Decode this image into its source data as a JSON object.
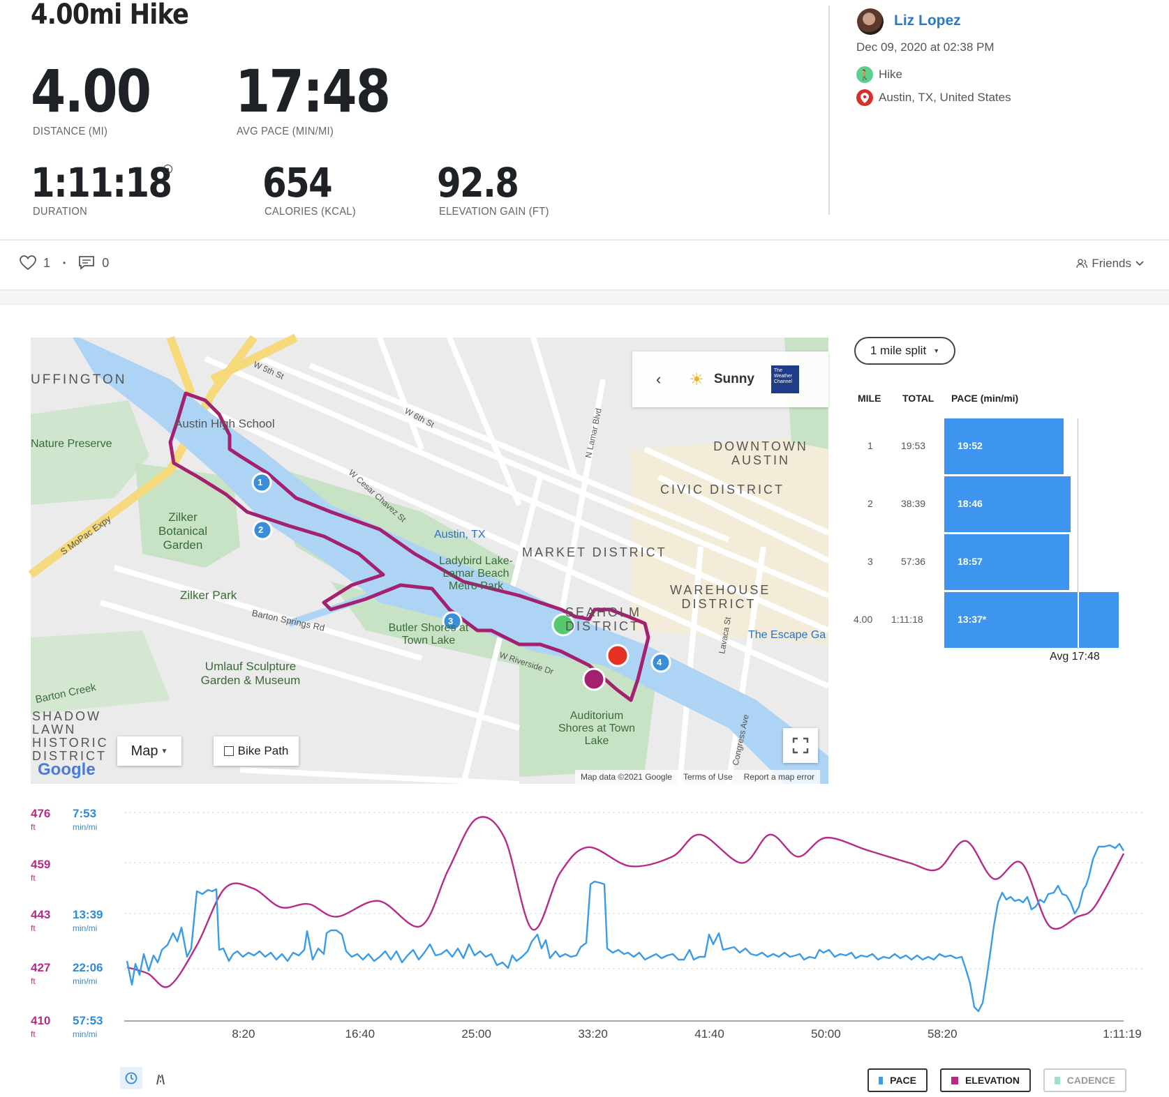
{
  "activity_title": "4.00mi Hike",
  "stats": {
    "distance": {
      "value": "4.00",
      "label": "DISTANCE (MI)"
    },
    "avg_pace": {
      "value": "17:48",
      "label": "AVG PACE (MIN/MI)"
    },
    "duration": {
      "value": "1:11:18",
      "label": "DURATION"
    },
    "calories": {
      "value": "654",
      "label": "CALORIES (KCAL)"
    },
    "elevation": {
      "value": "92.8",
      "label": "ELEVATION GAIN (FT)"
    }
  },
  "user": {
    "name": "Liz Lopez",
    "date": "Dec 09, 2020 at 02:38 PM",
    "activity_type": "Hike",
    "location": "Austin, TX, United States"
  },
  "social": {
    "likes": "1",
    "separator": "•",
    "comments": "0",
    "privacy": "Friends"
  },
  "map": {
    "weather": "Sunny",
    "weather_brand": "The Weather Channel",
    "map_type": "Map",
    "bike_path": "Bike Path",
    "attribution": "Map data ©2021 Google",
    "terms": "Terms of Use",
    "report": "Report a map error",
    "google": "Google",
    "labels": [
      "UFFINGTON",
      "Nature Preserve",
      "Austin High School",
      "Zilker Botanical Garden",
      "Zilker Park",
      "Barton Springs Rd",
      "Umlauf Sculpture Garden & Museum",
      "Barton Creek",
      "SHADOW LAWN HISTORIC DISTRICT",
      "Austin, TX",
      "Ladybird Lake-Lamar Beach Metro Park",
      "Butler Shores at Town Lake",
      "MARKET DISTRICT",
      "SEAHOLM DISTRICT",
      "DOWNTOWN AUSTIN",
      "CIVIC DISTRICT",
      "WAREHOUSE DISTRICT",
      "The Escape Ga",
      "Auditorium Shores at Town Lake",
      "S MoPac Expy",
      "W 6th St",
      "W 5th St",
      "W Cesar Chavez St",
      "W Riverside Dr",
      "Congress Ave",
      "Lavaca St",
      "N Lamar Blvd"
    ],
    "markers": [
      "1",
      "2",
      "3",
      "4"
    ]
  },
  "splits": {
    "selector": "1 mile split",
    "headers": {
      "mile": "MILE",
      "total": "TOTAL",
      "pace": "PACE (min/mi)"
    },
    "rows": [
      {
        "mile": "1",
        "total": "19:53",
        "pace": "19:52"
      },
      {
        "mile": "2",
        "total": "38:39",
        "pace": "18:46"
      },
      {
        "mile": "3",
        "total": "57:36",
        "pace": "18:57"
      },
      {
        "mile": "4.00",
        "total": "1:11:18",
        "pace": "13:37*"
      }
    ],
    "avg": "Avg 17:48"
  },
  "chart": {
    "y_elev": [
      {
        "v": "476",
        "u": "ft"
      },
      {
        "v": "459",
        "u": "ft"
      },
      {
        "v": "443",
        "u": "ft"
      },
      {
        "v": "427",
        "u": "ft"
      },
      {
        "v": "410",
        "u": "ft"
      }
    ],
    "y_pace": [
      {
        "v": "7:53",
        "u": "min/mi"
      },
      {
        "v": "13:39",
        "u": "min/mi"
      },
      {
        "v": "22:06",
        "u": "min/mi"
      },
      {
        "v": "57:53",
        "u": "min/mi"
      }
    ],
    "x_ticks": [
      "8:20",
      "16:40",
      "25:00",
      "33:20",
      "41:40",
      "50:00",
      "58:20",
      "1:11:19"
    ]
  },
  "legend": {
    "pace": "PACE",
    "elevation": "ELEVATION",
    "cadence": "CADENCE"
  },
  "colors": {
    "pace": "#3a9be8",
    "elevation": "#b52b86",
    "cadence": "#9ce3c4",
    "route": "#a3216f",
    "link": "#2a7ac8"
  },
  "chart_data": {
    "type": "line",
    "x_label": "",
    "x_ticks": [
      "8:20",
      "16:40",
      "25:00",
      "33:20",
      "41:40",
      "50:00",
      "58:20",
      "1:11:19"
    ],
    "series": [
      {
        "name": "ELEVATION",
        "unit": "ft",
        "ylim": [
          410,
          476
        ],
        "x_min": [
          0,
          1.5,
          3,
          5,
          7,
          9,
          11,
          13,
          15,
          18,
          21,
          23,
          25,
          27,
          29,
          31,
          33,
          36,
          39,
          41,
          44,
          46,
          48,
          50,
          53,
          56,
          58,
          60,
          62,
          64,
          66,
          68,
          69,
          70,
          71.3
        ],
        "values": [
          427,
          425,
          421,
          434,
          452,
          452,
          446,
          447,
          443,
          448,
          440,
          458,
          474,
          468,
          439,
          457,
          465,
          459,
          462,
          469,
          460,
          469,
          462,
          468,
          464,
          460,
          458,
          467,
          455,
          460,
          440,
          443,
          445,
          452,
          463
        ]
      },
      {
        "name": "PACE",
        "unit": "min/mi"
      }
    ]
  }
}
